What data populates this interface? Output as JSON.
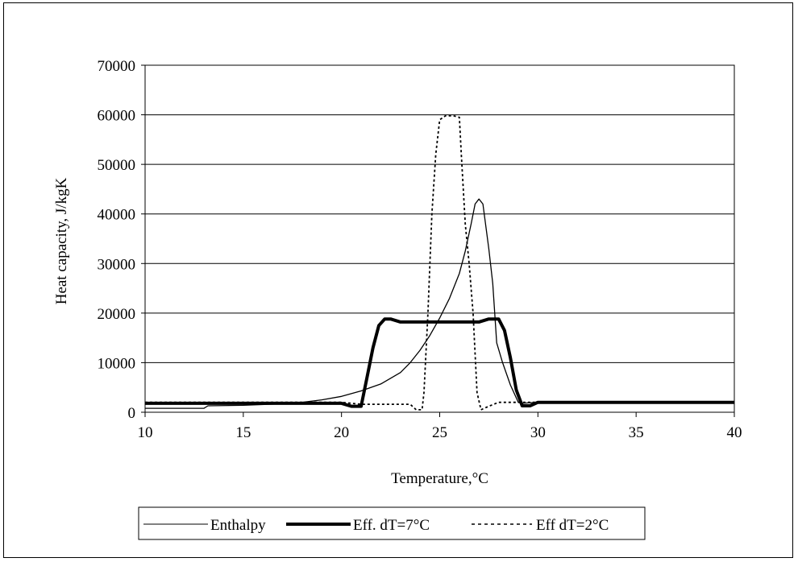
{
  "chart_data": {
    "type": "line",
    "title": "",
    "xlabel": "Temperature,°C",
    "ylabel": "Heat capacity, J/kgK",
    "xlim": [
      10,
      40
    ],
    "ylim": [
      0,
      70000
    ],
    "xticks": [
      10,
      15,
      20,
      25,
      30,
      35,
      40
    ],
    "yticks": [
      0,
      10000,
      20000,
      30000,
      40000,
      50000,
      60000,
      70000
    ],
    "grid": "horizontal",
    "legend_position": "bottom",
    "series": [
      {
        "name": "Enthalpy",
        "style": "thin-solid",
        "x": [
          10,
          13,
          13.2,
          15,
          17,
          18,
          19,
          20,
          21,
          22,
          23,
          23.5,
          24,
          24.5,
          25,
          25.5,
          26,
          26.3,
          26.6,
          26.8,
          27,
          27.2,
          27.5,
          27.7,
          27.9,
          28.2,
          28.6,
          29,
          29.2,
          30,
          35,
          40
        ],
        "y": [
          800,
          800,
          1300,
          1400,
          1700,
          2000,
          2500,
          3200,
          4300,
          5700,
          8000,
          10000,
          12500,
          15500,
          19000,
          23000,
          28000,
          32500,
          38000,
          42000,
          43000,
          42000,
          33000,
          26000,
          14000,
          10000,
          5500,
          2000,
          1800,
          2000,
          2000,
          2000
        ]
      },
      {
        "name": "Eff. dT=7°C",
        "style": "thick-solid",
        "x": [
          10,
          15,
          20,
          20.5,
          21,
          21.3,
          21.6,
          21.9,
          22.2,
          22.5,
          23,
          24,
          25,
          26,
          27,
          27.5,
          28,
          28.3,
          28.6,
          28.9,
          29.2,
          29.6,
          30,
          35,
          40
        ],
        "y": [
          1800,
          1800,
          1800,
          1200,
          1200,
          7000,
          13000,
          17500,
          18800,
          18800,
          18200,
          18200,
          18200,
          18200,
          18200,
          18800,
          18800,
          16500,
          11000,
          4500,
          1300,
          1300,
          2000,
          2000,
          2000
        ]
      },
      {
        "name": "Eff dT=2°C",
        "style": "dashed",
        "x": [
          10,
          15,
          20,
          21,
          23.5,
          23.8,
          24.1,
          24.2,
          24.4,
          24.6,
          24.8,
          25.0,
          25.3,
          25.7,
          26.0,
          26.1,
          26.3,
          26.5,
          26.7,
          26.9,
          27.1,
          27.5,
          28,
          29,
          30,
          35,
          40
        ],
        "y": [
          2000,
          2000,
          2000,
          1600,
          1600,
          500,
          500,
          4000,
          20000,
          40000,
          52000,
          59000,
          59800,
          59800,
          59500,
          52000,
          38000,
          30000,
          20000,
          4000,
          500,
          1200,
          2000,
          2000,
          2000,
          2000,
          2000
        ]
      }
    ]
  }
}
